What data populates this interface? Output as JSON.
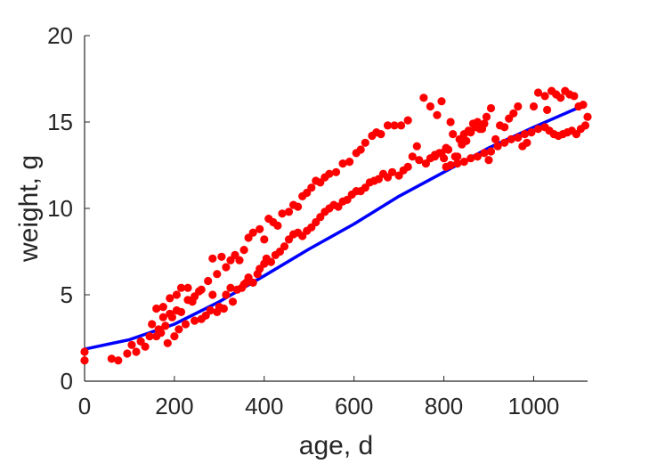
{
  "chart_data": {
    "type": "scatter",
    "xlabel": "age, d",
    "ylabel": "weight, g",
    "xlim": [
      0,
      1120
    ],
    "ylim": [
      0,
      20
    ],
    "xticks": [
      0,
      200,
      400,
      600,
      800,
      1000
    ],
    "yticks": [
      0,
      5,
      10,
      15,
      20
    ],
    "grid": false,
    "series": [
      {
        "kind": "scatter",
        "color": "#ff0000",
        "points": [
          [
            0,
            1.2
          ],
          [
            0,
            1.7
          ],
          [
            60,
            1.3
          ],
          [
            75,
            1.2
          ],
          [
            95,
            1.6
          ],
          [
            105,
            2.1
          ],
          [
            115,
            1.7
          ],
          [
            125,
            2.3
          ],
          [
            135,
            2.0
          ],
          [
            145,
            2.6
          ],
          [
            150,
            3.3
          ],
          [
            160,
            2.6
          ],
          [
            165,
            3.0
          ],
          [
            170,
            2.8
          ],
          [
            175,
            4.3
          ],
          [
            180,
            3.2
          ],
          [
            185,
            2.2
          ],
          [
            190,
            3.9
          ],
          [
            195,
            3.7
          ],
          [
            200,
            2.6
          ],
          [
            205,
            4.1
          ],
          [
            210,
            3.0
          ],
          [
            215,
            4.0
          ],
          [
            225,
            3.3
          ],
          [
            230,
            4.7
          ],
          [
            240,
            4.6
          ],
          [
            245,
            3.5
          ],
          [
            255,
            5.2
          ],
          [
            260,
            3.6
          ],
          [
            270,
            3.8
          ],
          [
            280,
            4.1
          ],
          [
            285,
            5.0
          ],
          [
            295,
            4.0
          ],
          [
            300,
            4.3
          ],
          [
            310,
            4.2
          ],
          [
            315,
            5.0
          ],
          [
            325,
            5.4
          ],
          [
            330,
            4.6
          ],
          [
            340,
            5.3
          ],
          [
            350,
            5.4
          ],
          [
            355,
            5.6
          ],
          [
            360,
            5.7
          ],
          [
            365,
            6.0
          ],
          [
            375,
            5.7
          ],
          [
            385,
            6.2
          ],
          [
            390,
            6.5
          ],
          [
            400,
            6.8
          ],
          [
            405,
            7.1
          ],
          [
            415,
            6.9
          ],
          [
            425,
            7.3
          ],
          [
            435,
            7.5
          ],
          [
            445,
            7.8
          ],
          [
            455,
            8.2
          ],
          [
            465,
            8.5
          ],
          [
            475,
            8.6
          ],
          [
            485,
            8.4
          ],
          [
            495,
            8.7
          ],
          [
            505,
            8.9
          ],
          [
            515,
            9.2
          ],
          [
            525,
            9.5
          ],
          [
            535,
            9.8
          ],
          [
            545,
            10.0
          ],
          [
            555,
            10.2
          ],
          [
            565,
            10.1
          ],
          [
            575,
            10.4
          ],
          [
            585,
            10.5
          ],
          [
            595,
            10.8
          ],
          [
            605,
            11.0
          ],
          [
            615,
            11.0
          ],
          [
            625,
            11.2
          ],
          [
            635,
            11.5
          ],
          [
            645,
            11.6
          ],
          [
            655,
            11.7
          ],
          [
            665,
            12.0
          ],
          [
            675,
            11.8
          ],
          [
            685,
            12.1
          ],
          [
            700,
            11.9
          ],
          [
            710,
            12.2
          ],
          [
            720,
            12.4
          ],
          [
            730,
            13.0
          ],
          [
            745,
            12.8
          ],
          [
            760,
            12.6
          ],
          [
            770,
            12.9
          ],
          [
            780,
            13.0
          ],
          [
            795,
            13.2
          ],
          [
            805,
            12.4
          ],
          [
            815,
            12.5
          ],
          [
            830,
            12.6
          ],
          [
            845,
            12.7
          ],
          [
            860,
            12.9
          ],
          [
            875,
            13.0
          ],
          [
            890,
            13.2
          ],
          [
            905,
            13.3
          ],
          [
            920,
            13.6
          ],
          [
            935,
            13.8
          ],
          [
            950,
            14.0
          ],
          [
            965,
            14.1
          ],
          [
            980,
            14.3
          ],
          [
            995,
            14.4
          ],
          [
            1010,
            14.6
          ],
          [
            1025,
            14.7
          ],
          [
            1035,
            14.5
          ],
          [
            1045,
            14.3
          ],
          [
            1055,
            14.2
          ],
          [
            1065,
            14.3
          ],
          [
            1075,
            14.4
          ],
          [
            1085,
            14.5
          ],
          [
            1095,
            14.3
          ],
          [
            1105,
            14.6
          ],
          [
            1115,
            14.8
          ],
          [
            160,
            4.2
          ],
          [
            175,
            3.7
          ],
          [
            190,
            4.8
          ],
          [
            205,
            5.0
          ],
          [
            215,
            5.4
          ],
          [
            230,
            5.4
          ],
          [
            245,
            4.9
          ],
          [
            260,
            5.3
          ],
          [
            275,
            5.8
          ],
          [
            285,
            7.1
          ],
          [
            295,
            6.2
          ],
          [
            305,
            7.2
          ],
          [
            315,
            6.6
          ],
          [
            325,
            7.0
          ],
          [
            335,
            7.3
          ],
          [
            345,
            7.0
          ],
          [
            355,
            7.6
          ],
          [
            365,
            8.3
          ],
          [
            375,
            8.6
          ],
          [
            390,
            8.8
          ],
          [
            400,
            8.2
          ],
          [
            410,
            9.4
          ],
          [
            420,
            9.2
          ],
          [
            430,
            9.0
          ],
          [
            440,
            9.7
          ],
          [
            455,
            9.8
          ],
          [
            465,
            10.2
          ],
          [
            475,
            10.1
          ],
          [
            485,
            10.7
          ],
          [
            495,
            10.9
          ],
          [
            505,
            11.2
          ],
          [
            515,
            11.6
          ],
          [
            525,
            11.5
          ],
          [
            535,
            11.8
          ],
          [
            545,
            12.0
          ],
          [
            560,
            12.1
          ],
          [
            575,
            12.6
          ],
          [
            590,
            12.7
          ],
          [
            605,
            13.2
          ],
          [
            615,
            13.4
          ],
          [
            625,
            13.8
          ],
          [
            640,
            14.2
          ],
          [
            650,
            14.4
          ],
          [
            660,
            14.3
          ],
          [
            675,
            14.8
          ],
          [
            690,
            14.8
          ],
          [
            705,
            14.8
          ],
          [
            720,
            15.1
          ],
          [
            740,
            13.6
          ],
          [
            755,
            16.4
          ],
          [
            770,
            15.9
          ],
          [
            785,
            15.4
          ],
          [
            795,
            16.2
          ],
          [
            805,
            13.5
          ],
          [
            815,
            15.0
          ],
          [
            825,
            13.0
          ],
          [
            835,
            14.0
          ],
          [
            845,
            14.3
          ],
          [
            855,
            14.5
          ],
          [
            865,
            14.9
          ],
          [
            875,
            15.0
          ],
          [
            885,
            14.6
          ],
          [
            895,
            15.3
          ],
          [
            905,
            15.8
          ],
          [
            915,
            14.0
          ],
          [
            925,
            14.8
          ],
          [
            935,
            14.7
          ],
          [
            945,
            15.2
          ],
          [
            955,
            15.5
          ],
          [
            965,
            15.9
          ],
          [
            975,
            13.6
          ],
          [
            985,
            13.8
          ],
          [
            1000,
            15.9
          ],
          [
            1010,
            16.7
          ],
          [
            1025,
            16.5
          ],
          [
            1030,
            15.7
          ],
          [
            1040,
            16.8
          ],
          [
            1050,
            16.6
          ],
          [
            1060,
            16.4
          ],
          [
            1070,
            16.8
          ],
          [
            1080,
            16.6
          ],
          [
            1090,
            16.5
          ],
          [
            1100,
            15.9
          ],
          [
            1110,
            16.0
          ],
          [
            1120,
            15.3
          ],
          [
            780,
            13.1
          ],
          [
            790,
            13.2
          ],
          [
            800,
            12.9
          ],
          [
            810,
            13.4
          ],
          [
            820,
            14.3
          ],
          [
            830,
            13.0
          ],
          [
            840,
            13.7
          ],
          [
            850,
            13.9
          ],
          [
            860,
            14.4
          ],
          [
            870,
            14.7
          ],
          [
            880,
            14.6
          ],
          [
            890,
            14.9
          ],
          [
            900,
            12.8
          ]
        ]
      },
      {
        "kind": "line",
        "color": "#0000ff",
        "points": [
          [
            0,
            1.85
          ],
          [
            100,
            2.4
          ],
          [
            200,
            3.3
          ],
          [
            300,
            4.6
          ],
          [
            400,
            6.1
          ],
          [
            500,
            7.65
          ],
          [
            600,
            9.1
          ],
          [
            700,
            10.7
          ],
          [
            800,
            12.1
          ],
          [
            900,
            13.5
          ],
          [
            1000,
            14.7
          ],
          [
            1110,
            15.95
          ]
        ]
      }
    ]
  }
}
